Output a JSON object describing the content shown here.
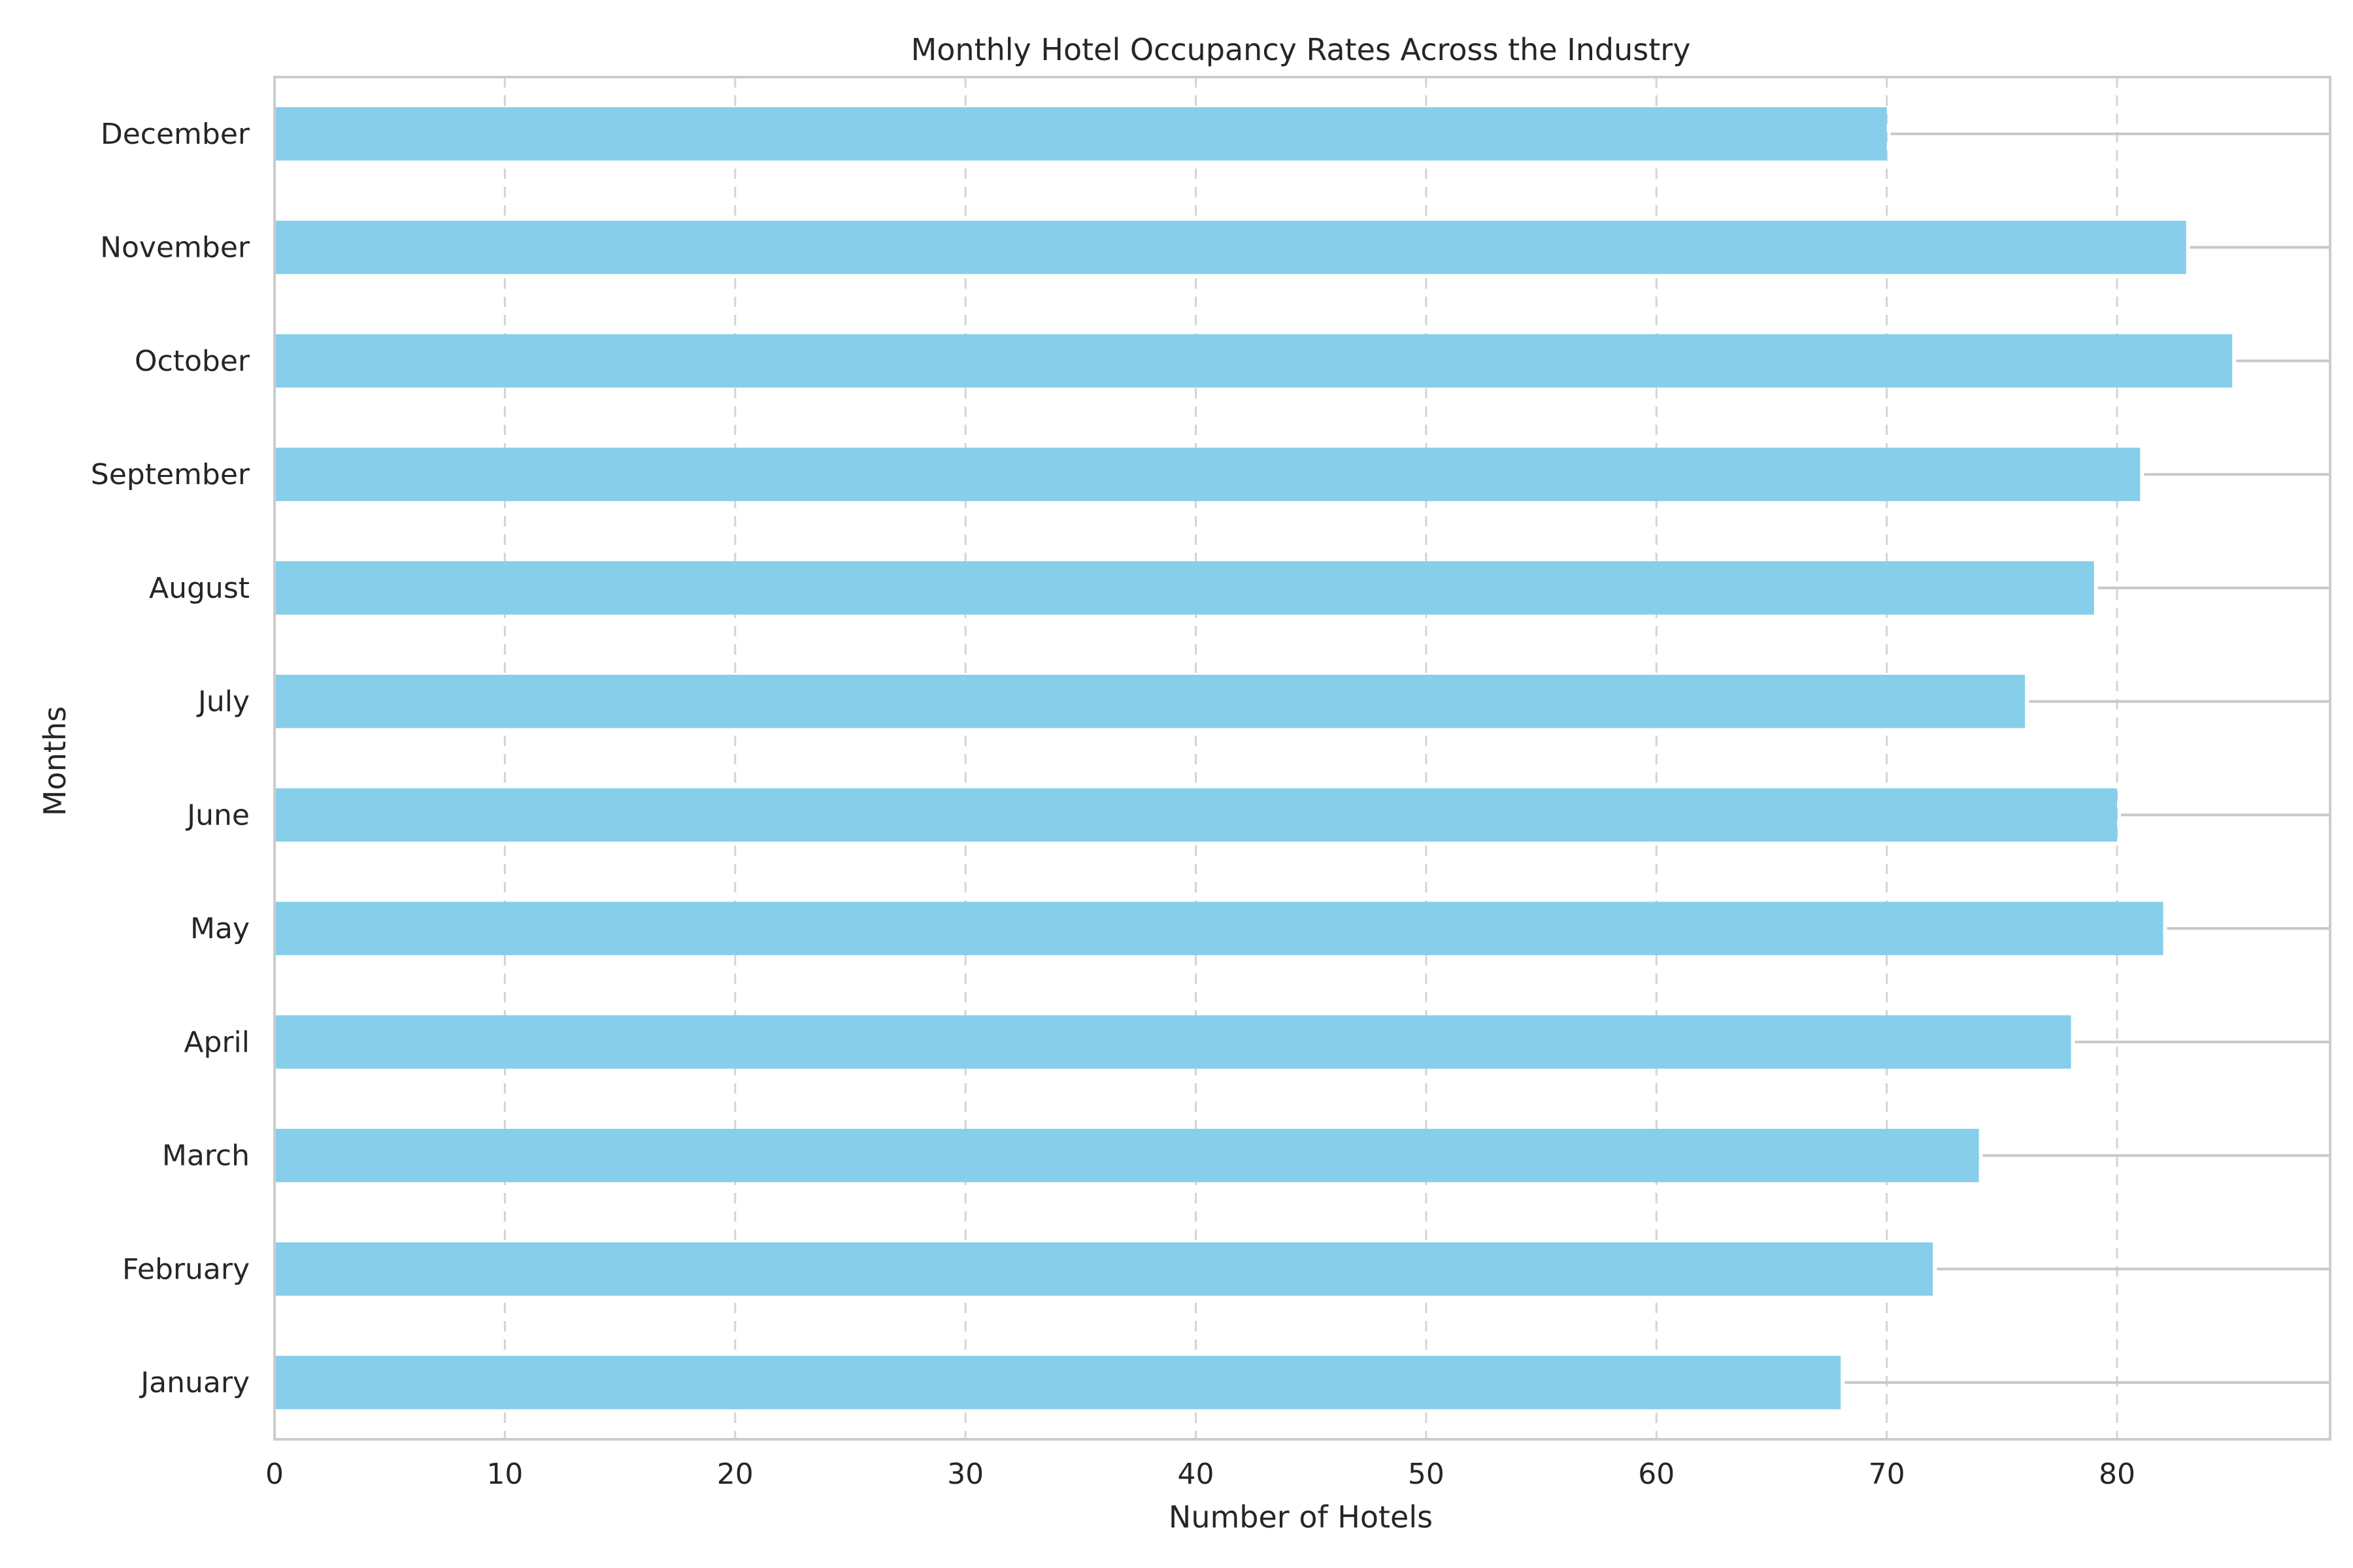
{
  "chart_data": {
    "type": "bar",
    "orientation": "horizontal",
    "title": "Monthly Hotel Occupancy Rates Across the Industry",
    "xlabel": "Number of Hotels",
    "ylabel": "Months",
    "categories": [
      "January",
      "February",
      "March",
      "April",
      "May",
      "June",
      "July",
      "August",
      "September",
      "October",
      "November",
      "December"
    ],
    "values": [
      68,
      72,
      74,
      78,
      82,
      80,
      76,
      79,
      81,
      85,
      83,
      70
    ],
    "xlim": [
      0,
      89.25
    ],
    "xticks": [
      "0",
      "10",
      "20",
      "30",
      "40",
      "50",
      "60",
      "70",
      "80"
    ],
    "grid": "x-dashed",
    "bar_color": "#87ceeb",
    "leader_line_color": "#c8c8c8"
  }
}
